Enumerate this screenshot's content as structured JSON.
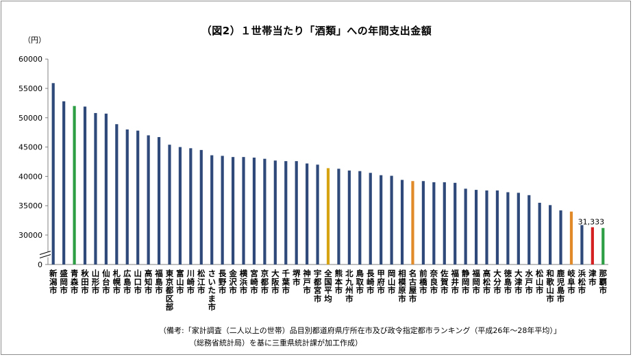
{
  "title": "（図2）１世帯当たり「酒類」への年間支出金額",
  "unit_label": "（円）",
  "notes": [
    "（備考:「家計調査（二人以上の世帯）品目別都道府県庁所在市及び政令指定都市ランキング（平成26年～28年平均）」",
    "（総務省統計局）を基に三重県統計課が加工作成）"
  ],
  "colors": {
    "default": "#2f4a7a",
    "aomori": "#2e9e45",
    "zenkoku": "#d6a312",
    "nagoya": "#e08a2a",
    "gifu": "#e08a2a",
    "tsu": "#d42020",
    "naha": "#2e9e45"
  },
  "chart_data": {
    "type": "bar",
    "ylabel": "（円）",
    "ylim": [
      0,
      60000
    ],
    "y_ticks": [
      "0",
      "30000",
      "35000",
      "40000",
      "45000",
      "50000",
      "55000",
      "60000"
    ],
    "axis_break": true,
    "grid": false,
    "legend": "none",
    "categories": [
      "新潟市",
      "盛岡市",
      "青森市",
      "秋田市",
      "山形市",
      "仙台市",
      "札幌市",
      "広島市",
      "山口市",
      "高知市",
      "福島市",
      "東京都区部",
      "富山市",
      "川崎市",
      "松江市",
      "さいたま市",
      "長野市",
      "金沢市",
      "横浜市",
      "宮崎市",
      "京都市",
      "大阪市",
      "千葉市",
      "堺市",
      "神戸市",
      "宇都宮市",
      "全国平均",
      "熊本市",
      "北九州市",
      "鳥取市",
      "長崎市",
      "甲府市",
      "岡山市",
      "相模原市",
      "名古屋市",
      "前橋市",
      "奈良市",
      "佐賀市",
      "福井市",
      "静岡市",
      "福岡市",
      "高松市",
      "大分市",
      "徳島市",
      "大津市",
      "水戸市",
      "松山市",
      "和歌山市",
      "鹿児島市",
      "岐阜市",
      "浜松市",
      "津市",
      "那覇市"
    ],
    "values": [
      55900,
      52800,
      52000,
      51900,
      50800,
      50700,
      48900,
      48000,
      47800,
      47000,
      46700,
      45400,
      45000,
      44800,
      44500,
      43600,
      43500,
      43300,
      43300,
      43200,
      43000,
      42700,
      42600,
      42600,
      42200,
      42000,
      41400,
      41300,
      41000,
      40900,
      40600,
      40200,
      40100,
      39400,
      39200,
      39200,
      39000,
      39000,
      38900,
      37900,
      37700,
      37600,
      37600,
      37300,
      37200,
      36800,
      35500,
      35100,
      34200,
      34000,
      31700,
      31333,
      31200
    ],
    "highlight": {
      "青森市": "aomori",
      "全国平均": "zenkoku",
      "名古屋市": "nagoya",
      "岐阜市": "gifu",
      "津市": "tsu",
      "那覇市": "naha"
    },
    "data_labels": [
      {
        "category": "津市",
        "text": "31,333"
      }
    ]
  }
}
